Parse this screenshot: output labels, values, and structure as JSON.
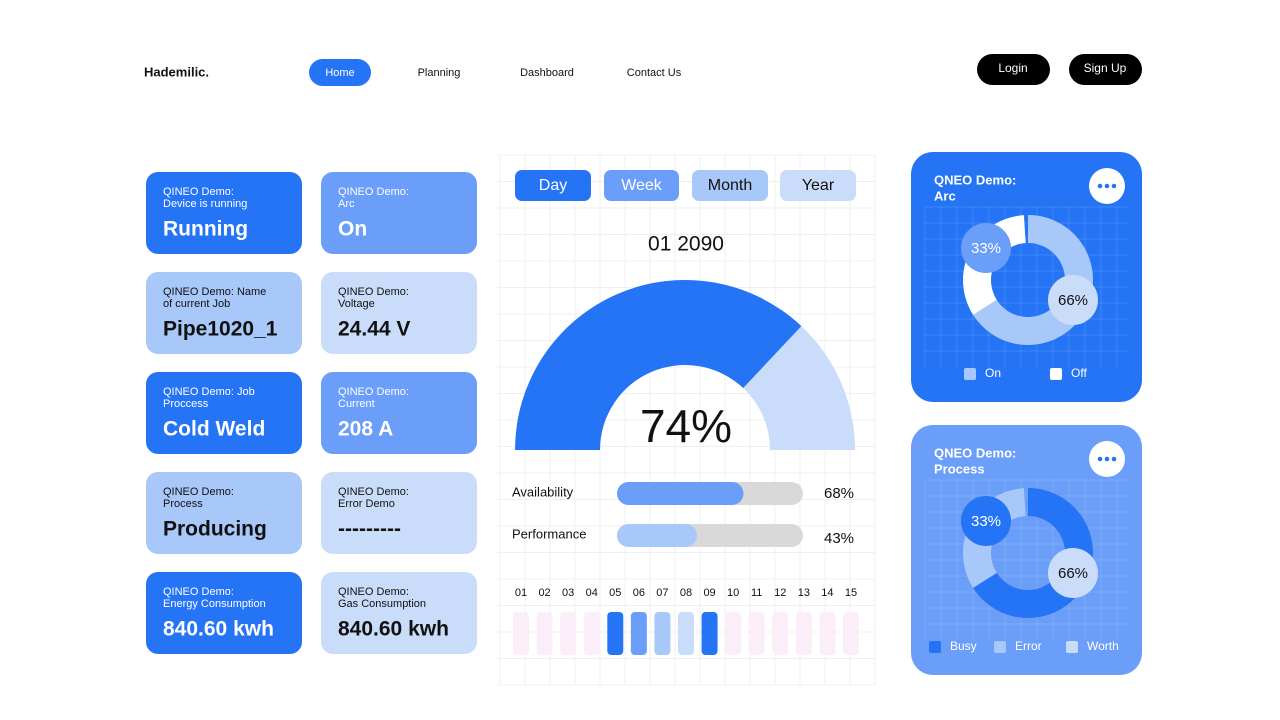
{
  "header": {
    "brand": "Hademilic.",
    "nav": [
      "Home",
      "Planning",
      "Dashboard",
      "Contact Us"
    ],
    "login": "Login",
    "signup": "Sign Up"
  },
  "cards": [
    {
      "lines": [
        "QINEO Demo:",
        "Device is running"
      ],
      "value": "Running",
      "color": "#2474f5",
      "text_color": "#ffffff"
    },
    {
      "lines": [
        "QINEO Demo:",
        "Arc"
      ],
      "value": "On",
      "color": "#6a9ef8",
      "text_color": "#ffffff"
    },
    {
      "lines": [
        "QINEO Demo: Name",
        "of current Job"
      ],
      "value": "Pipe1020_1",
      "color": "#a9c8fa",
      "text_color": "#111111"
    },
    {
      "lines": [
        "QINEO Demo:",
        "Voltage"
      ],
      "value": "24.44 V",
      "color": "#c9ddfb",
      "text_color": "#111111"
    },
    {
      "lines": [
        "QINEO Demo: Job",
        "Proccess"
      ],
      "value": "Cold Weld",
      "color": "#2474f5",
      "text_color": "#ffffff"
    },
    {
      "lines": [
        "QINEO Demo:",
        "Current"
      ],
      "value": "208 A",
      "color": "#6a9ef8",
      "text_color": "#ffffff"
    },
    {
      "lines": [
        "QINEO Demo:",
        "Process"
      ],
      "value": "Producing",
      "color": "#a9c8fa",
      "text_color": "#111111"
    },
    {
      "lines": [
        "QINEO Demo:",
        "Error Demo"
      ],
      "value": "---------",
      "color": "#c9ddfb",
      "text_color": "#111111"
    },
    {
      "lines": [
        "QINEO Demo:",
        "Energy Consumption"
      ],
      "value": "840.60 kwh",
      "color": "#2474f5",
      "text_color": "#ffffff"
    },
    {
      "lines": [
        "QINEO Demo:",
        "Gas Consumption"
      ],
      "value": "840.60 kwh",
      "color": "#c9ddfb",
      "text_color": "#111111"
    }
  ],
  "tabs": [
    {
      "label": "Day",
      "color": "#2474f5",
      "text_color": "#ffffff"
    },
    {
      "label": "Week",
      "color": "#6a9ef8",
      "text_color": "#ffffff"
    },
    {
      "label": "Month",
      "color": "#a9c8fa",
      "text_color": "#111111"
    },
    {
      "label": "Year",
      "color": "#c9ddfb",
      "text_color": "#111111"
    }
  ],
  "date": "01 2090",
  "gauge": {
    "value": 74,
    "label": "74%",
    "color": "#2474f5",
    "rest_color": "#c9ddfb"
  },
  "bars": [
    {
      "name": "Availability",
      "value": 68,
      "label": "68%",
      "color": "#6a9ef8"
    },
    {
      "name": "Performance",
      "value": 43,
      "label": "43%",
      "color": "#a9c8fa"
    }
  ],
  "days": [
    {
      "label": "01",
      "color": "#fbeef8"
    },
    {
      "label": "02",
      "color": "#fbeef8"
    },
    {
      "label": "03",
      "color": "#fbeef8"
    },
    {
      "label": "04",
      "color": "#fbeef8"
    },
    {
      "label": "05",
      "color": "#2474f5"
    },
    {
      "label": "06",
      "color": "#6a9ef8"
    },
    {
      "label": "07",
      "color": "#a9c8fa"
    },
    {
      "label": "08",
      "color": "#c9ddfb"
    },
    {
      "label": "09",
      "color": "#2474f5"
    },
    {
      "label": "10",
      "color": "#fbeef8"
    },
    {
      "label": "11",
      "color": "#fbeef8"
    },
    {
      "label": "12",
      "color": "#fbeef8"
    },
    {
      "label": "13",
      "color": "#fbeef8"
    },
    {
      "label": "14",
      "color": "#fbeef8"
    },
    {
      "label": "15",
      "color": "#fbeef8"
    }
  ],
  "panels": [
    {
      "title": [
        "QNEO Demo:",
        "Arc"
      ],
      "color": "#2474f5",
      "segments": [
        {
          "value": 66,
          "label": "66%",
          "color": "#a9c8fa"
        },
        {
          "value": 33,
          "label": "33%",
          "color": "#ffffff"
        }
      ],
      "legend": [
        {
          "name": "On",
          "color": "#a9c8fa"
        },
        {
          "name": "Off",
          "color": "#ffffff"
        }
      ]
    },
    {
      "title": [
        "QNEO Demo:",
        "Process"
      ],
      "color": "#6a9ef8",
      "segments": [
        {
          "value": 66,
          "label": "66%",
          "color": "#2474f5"
        },
        {
          "value": 33,
          "label": "33%",
          "color": "#a9c8fa"
        }
      ],
      "legend": [
        {
          "name": "Busy",
          "color": "#2474f5"
        },
        {
          "name": "Error",
          "color": "#a9c8fa"
        },
        {
          "name": "Worth",
          "color": "#c9ddfb"
        }
      ]
    }
  ]
}
